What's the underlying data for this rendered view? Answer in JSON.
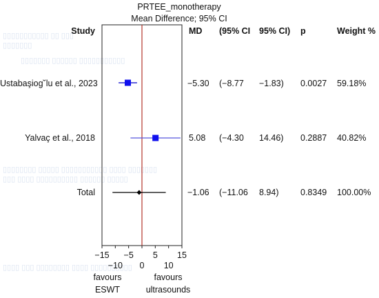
{
  "chart_data": {
    "type": "forest",
    "title": "PRTEE_monotherapy",
    "subtitle": "Mean Difference; 95% CI",
    "columns": {
      "study": "Study",
      "md": "MD",
      "ci_low": "(95% CI",
      "ci_high": "95% CI)",
      "p": "p",
      "weight": "Weight %"
    },
    "studies": [
      {
        "label": "Ustabaşiog˘lu et al., 2023",
        "md": -5.3,
        "ci_low": -8.77,
        "ci_high": -1.83,
        "md_text": "−5.30",
        "ci_low_text": "(−8.77",
        "ci_high_text": "−1.83)",
        "p_text": "0.0027",
        "weight_text": "59.18%",
        "color": "#1010ee",
        "line_color": "#0000cc",
        "marker": "square"
      },
      {
        "label": "Yalvaç et al., 2018",
        "md": 5.08,
        "ci_low": -4.3,
        "ci_high": 14.46,
        "md_text": "5.08",
        "ci_low_text": "(−4.30",
        "ci_high_text": "14.46)",
        "p_text": "0.2887",
        "weight_text": "40.82%",
        "color": "#1010ee",
        "line_color": "#5555dd",
        "marker": "square"
      },
      {
        "label": "Total",
        "md": -1.06,
        "ci_low": -11.06,
        "ci_high": 8.94,
        "md_text": "−1.06",
        "ci_low_text": "(−11.06",
        "ci_high_text": "8.94)",
        "p_text": "0.8349",
        "weight_text": "100.00%",
        "color": "#000000",
        "line_color": "#000000",
        "marker": "diamond"
      }
    ],
    "x_axis": {
      "min": -15,
      "max": 15,
      "ticks_upper": [
        -15,
        -5,
        5,
        15
      ],
      "ticks_lower": [
        -10,
        0,
        10
      ],
      "labels_upper": [
        "−15",
        "−5",
        "5",
        "15"
      ],
      "labels_lower": [
        "−10",
        "0",
        "10"
      ]
    },
    "reference_line": 0,
    "reference_color": "#b5322a",
    "favours_left": [
      "favours",
      "ESWT"
    ],
    "favours_right": [
      "favours",
      "ultrasounds"
    ]
  }
}
